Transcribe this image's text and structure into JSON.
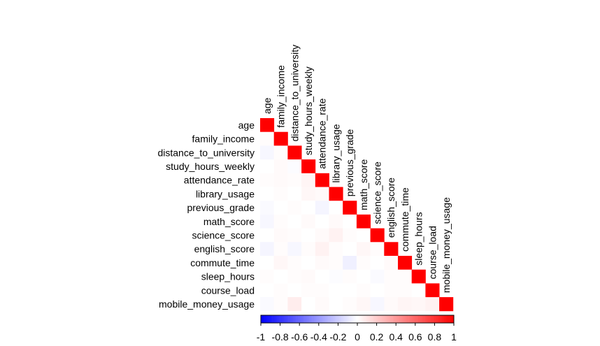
{
  "chart_data": {
    "type": "heatmap",
    "layout": "lower-triangle",
    "title": "",
    "xlabel": "",
    "ylabel": "",
    "variables": [
      "age",
      "family_income",
      "distance_to_university",
      "study_hours_weekly",
      "attendance_rate",
      "library_usage",
      "previous_grade",
      "math_score",
      "science_score",
      "english_score",
      "commute_time",
      "sleep_hours",
      "course_load",
      "mobile_money_usage"
    ],
    "matrix": [
      [
        1
      ],
      [
        0.01,
        1
      ],
      [
        -0.03,
        0.01,
        1
      ],
      [
        0.0,
        0.02,
        -0.01,
        1
      ],
      [
        0.01,
        0.02,
        0.01,
        0.04,
        1
      ],
      [
        0.0,
        0.01,
        0.0,
        0.03,
        0.02,
        1
      ],
      [
        -0.02,
        0.0,
        0.01,
        0.0,
        -0.04,
        0.0,
        1
      ],
      [
        -0.03,
        0.01,
        0.0,
        0.02,
        0.0,
        0.02,
        0.0,
        1
      ],
      [
        0.0,
        0.02,
        0.01,
        0.0,
        0.02,
        0.05,
        0.01,
        0.0,
        1
      ],
      [
        -0.04,
        0.01,
        -0.03,
        0.01,
        0.05,
        0.01,
        0.0,
        0.03,
        0.01,
        1
      ],
      [
        0.0,
        0.03,
        0.01,
        0.0,
        0.02,
        0.01,
        -0.06,
        0.01,
        0.0,
        0.02,
        1
      ],
      [
        0.01,
        0.0,
        0.01,
        0.02,
        0.0,
        -0.01,
        0.01,
        0.0,
        -0.02,
        0.01,
        0.01,
        1
      ],
      [
        0.0,
        0.01,
        0.0,
        0.01,
        0.01,
        0.0,
        0.0,
        0.01,
        0.0,
        0.01,
        0.01,
        0.0,
        1
      ],
      [
        -0.02,
        0.01,
        0.07,
        0.0,
        0.02,
        0.0,
        0.01,
        0.03,
        -0.03,
        0.02,
        0.04,
        0.03,
        0.05,
        1
      ]
    ],
    "colorbar": {
      "range": [
        -1,
        1
      ],
      "ticks": [
        "-1",
        "-0.8",
        "-0.6",
        "-0.4",
        "-0.2",
        "0",
        "0.2",
        "0.4",
        "0.6",
        "0.8",
        "1"
      ],
      "colors": {
        "negative": "#0000ff",
        "zero": "#ffffff",
        "positive": "#ff0000"
      }
    }
  }
}
